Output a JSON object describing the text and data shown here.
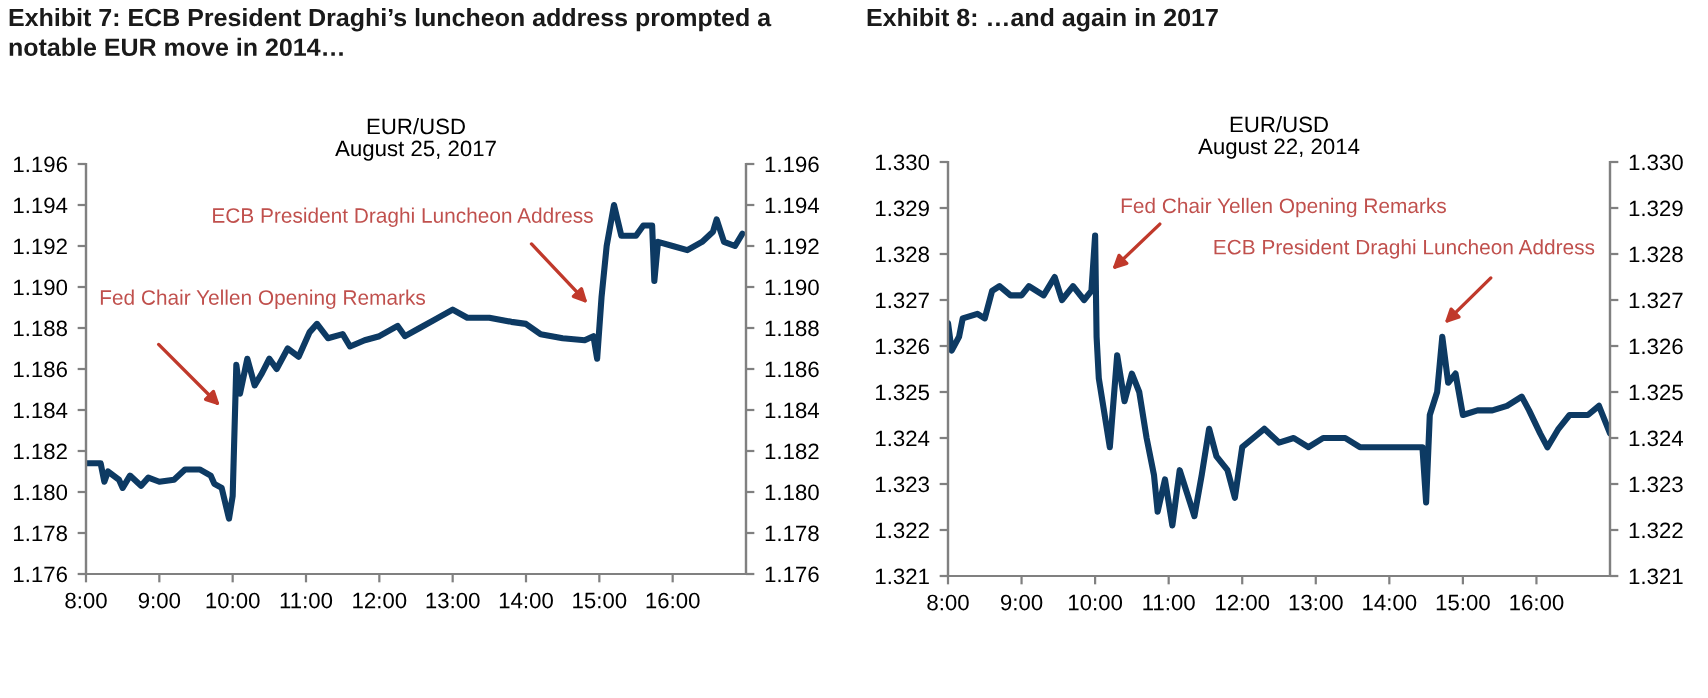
{
  "chart_data": [
    {
      "type": "line",
      "title": "Exhibit 7: ECB President Draghi’s luncheon address prompted a notable EUR move in 2014…",
      "subtitle": "EUR/USD",
      "annotations": [
        "August 25, 2017",
        "Fed Chair Yellen Opening Remarks",
        "ECB President Draghi Luncheon Address"
      ],
      "series": [
        {
          "color": "#0d3a63",
          "x": [
            8.0,
            8.2,
            8.25,
            8.3,
            8.45,
            8.5,
            8.6,
            8.75,
            8.85,
            9.0,
            9.2,
            9.35,
            9.55,
            9.7,
            9.75,
            9.85,
            9.95,
            10.0,
            10.05,
            10.1,
            10.2,
            10.3,
            10.4,
            10.5,
            10.6,
            10.75,
            10.9,
            11.05,
            11.15,
            11.3,
            11.5,
            11.6,
            11.8,
            12.0,
            12.25,
            12.35,
            12.55,
            12.75,
            13.0,
            13.2,
            13.5,
            13.8,
            14.0,
            14.2,
            14.5,
            14.8,
            14.92,
            14.97,
            15.03,
            15.1,
            15.2,
            15.3,
            15.5,
            15.6,
            15.72,
            15.75,
            15.8,
            16.0,
            16.2,
            16.4,
            16.55,
            16.6,
            16.7,
            16.85,
            16.95
          ],
          "values": [
            1.1814,
            1.1814,
            1.1805,
            1.181,
            1.1806,
            1.1802,
            1.1808,
            1.1803,
            1.1807,
            1.1805,
            1.1806,
            1.1811,
            1.1811,
            1.1808,
            1.1804,
            1.1802,
            1.1787,
            1.1798,
            1.1862,
            1.1848,
            1.1865,
            1.1852,
            1.1858,
            1.1865,
            1.186,
            1.187,
            1.1866,
            1.1878,
            1.1882,
            1.1875,
            1.1877,
            1.1871,
            1.1874,
            1.1876,
            1.1881,
            1.1876,
            1.188,
            1.1884,
            1.1889,
            1.1885,
            1.1885,
            1.1883,
            1.1882,
            1.1877,
            1.1875,
            1.1874,
            1.1876,
            1.1865,
            1.1895,
            1.192,
            1.194,
            1.1925,
            1.1925,
            1.193,
            1.193,
            1.1903,
            1.1922,
            1.192,
            1.1918,
            1.1922,
            1.1927,
            1.1933,
            1.1922,
            1.192,
            1.1926
          ]
        }
      ],
      "xlim": [
        8,
        17
      ],
      "xticks": [
        {
          "value": 8,
          "label": "8:00"
        },
        {
          "value": 9,
          "label": "9:00"
        },
        {
          "value": 10,
          "label": "10:00"
        },
        {
          "value": 11,
          "label": "11:00"
        },
        {
          "value": 12,
          "label": "12:00"
        },
        {
          "value": 13,
          "label": "13:00"
        },
        {
          "value": 14,
          "label": "14:00"
        },
        {
          "value": 15,
          "label": "15:00"
        },
        {
          "value": 16,
          "label": "16:00"
        }
      ],
      "ylim": [
        1.176,
        1.196
      ],
      "yticks": [
        1.176,
        1.178,
        {
          "value": 1.18,
          "label": "1.180"
        },
        1.182,
        1.184,
        1.186,
        1.188,
        {
          "value": 1.19,
          "label": "1.190"
        },
        1.192,
        1.194,
        1.196
      ],
      "y2lim": [
        1.176,
        1.196
      ],
      "y2ticks": [
        1.176,
        1.178,
        {
          "value": 1.18,
          "label": "1.180"
        },
        1.182,
        1.184,
        1.186,
        1.188,
        {
          "value": 1.19,
          "label": "1.190"
        },
        1.192,
        1.194,
        1.196
      ]
    },
    {
      "type": "line",
      "title": "Exhibit 8: …and again in 2017",
      "subtitle": "EUR/USD",
      "annotations": [
        "August 22, 2014",
        "Fed Chair Yellen Opening Remarks",
        "ECB President Draghi Luncheon Address"
      ],
      "series": [
        {
          "color": "#0d3a63",
          "x": [
            8.0,
            8.05,
            8.15,
            8.2,
            8.4,
            8.5,
            8.6,
            8.7,
            8.85,
            9.0,
            9.1,
            9.3,
            9.45,
            9.55,
            9.7,
            9.85,
            9.95,
            10.0,
            10.02,
            10.05,
            10.1,
            10.2,
            10.3,
            10.4,
            10.5,
            10.6,
            10.7,
            10.8,
            10.85,
            10.95,
            11.05,
            11.15,
            11.25,
            11.35,
            11.45,
            11.55,
            11.65,
            11.8,
            11.9,
            12.0,
            12.15,
            12.3,
            12.5,
            12.7,
            12.9,
            13.1,
            13.4,
            13.6,
            13.9,
            14.2,
            14.45,
            14.5,
            14.55,
            14.65,
            14.72,
            14.8,
            14.9,
            15.0,
            15.2,
            15.4,
            15.6,
            15.8,
            15.9,
            16.05,
            16.15,
            16.3,
            16.45,
            16.7,
            16.85,
            17.0
          ],
          "values": [
            1.3265,
            1.3259,
            1.3262,
            1.3266,
            1.3267,
            1.3266,
            1.3272,
            1.3273,
            1.3271,
            1.3271,
            1.3273,
            1.3271,
            1.3275,
            1.327,
            1.3273,
            1.327,
            1.3272,
            1.3284,
            1.3262,
            1.3253,
            1.3248,
            1.3238,
            1.3258,
            1.3248,
            1.3254,
            1.325,
            1.324,
            1.3232,
            1.3224,
            1.3231,
            1.3221,
            1.3233,
            1.3228,
            1.3223,
            1.3232,
            1.3242,
            1.3236,
            1.3233,
            1.3227,
            1.3238,
            1.324,
            1.3242,
            1.3239,
            1.324,
            1.3238,
            1.324,
            1.324,
            1.3238,
            1.3238,
            1.3238,
            1.3238,
            1.3226,
            1.3245,
            1.325,
            1.3262,
            1.3252,
            1.3254,
            1.3245,
            1.3246,
            1.3246,
            1.3247,
            1.3249,
            1.3246,
            1.3241,
            1.3238,
            1.3242,
            1.3245,
            1.3245,
            1.3247,
            1.3241
          ]
        }
      ],
      "xlim": [
        8,
        17
      ],
      "xticks": [
        {
          "value": 8,
          "label": "8:00"
        },
        {
          "value": 9,
          "label": "9:00"
        },
        {
          "value": 10,
          "label": "10:00"
        },
        {
          "value": 11,
          "label": "11:00"
        },
        {
          "value": 12,
          "label": "12:00"
        },
        {
          "value": 13,
          "label": "13:00"
        },
        {
          "value": 14,
          "label": "14:00"
        },
        {
          "value": 15,
          "label": "15:00"
        },
        {
          "value": 16,
          "label": "16:00"
        }
      ],
      "ylim": [
        1.321,
        1.33
      ],
      "yticks": [
        1.321,
        1.322,
        1.323,
        1.324,
        1.325,
        1.326,
        1.327,
        1.328,
        1.329,
        {
          "value": 1.33,
          "label": "1.330"
        }
      ],
      "y2lim": [
        1.321,
        1.33
      ],
      "y2ticks": [
        1.321,
        1.322,
        1.323,
        1.324,
        1.325,
        1.326,
        1.327,
        1.328,
        1.329,
        {
          "value": 1.33,
          "label": "1.330"
        }
      ]
    }
  ]
}
